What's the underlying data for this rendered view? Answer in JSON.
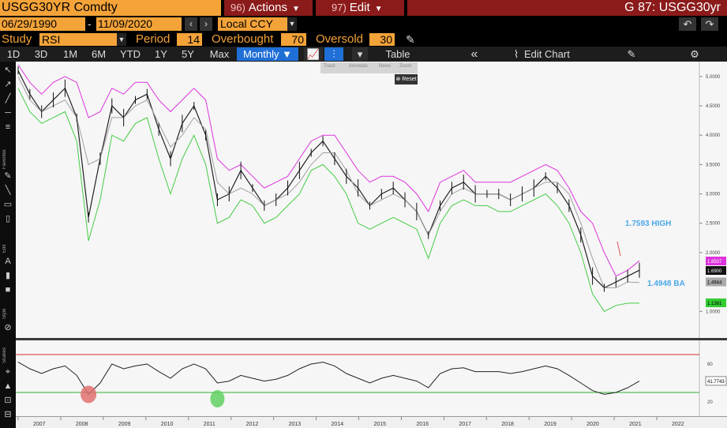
{
  "header": {
    "ticker": "USGG30YR Comdty",
    "actions": {
      "num": "96)",
      "label": "Actions"
    },
    "edit": {
      "num": "97)",
      "label": "Edit"
    },
    "title": "G 87: USGG30yr"
  },
  "dates": {
    "start": "06/29/1990",
    "separator": "-",
    "end": "11/09/2020"
  },
  "currency": "Local CCY",
  "study": {
    "label": "Study",
    "value": "RSI",
    "period_label": "Period",
    "period": "14",
    "overbought_label": "Overbought",
    "overbought": "70",
    "oversold_label": "Oversold",
    "oversold": "30"
  },
  "ranges": [
    "1D",
    "3D",
    "1M",
    "6M",
    "YTD",
    "1Y",
    "5Y",
    "Max"
  ],
  "frequency": "Monthly",
  "toolbar": {
    "table": "Table",
    "edit_chart": "Edit Chart"
  },
  "mini_toolbar": {
    "track": "Track",
    "annotate": "Annotate",
    "news": "News",
    "zoom": "Zoom",
    "reset": "Reset"
  },
  "sidebar_labels": {
    "favorites": "Favorites",
    "edit": "Edit",
    "style": "Style",
    "studies": "Studies"
  },
  "chart_data": {
    "type": "line",
    "main": {
      "y_ticks": [
        "5.0000",
        "4.5000",
        "4.0000",
        "3.5000",
        "3.0000",
        "2.5000",
        "2.0000",
        "1.0000"
      ],
      "ylim": [
        0.6,
        5.2
      ],
      "x_labels": [
        "2007",
        "2008",
        "2009",
        "2010",
        "2011",
        "2012",
        "2013",
        "2014",
        "2015",
        "2016",
        "2017",
        "2018",
        "2019",
        "2020",
        "2021",
        "2022"
      ],
      "series": [
        {
          "values": [
            5.1,
            4.7,
            4.4,
            4.6,
            4.8,
            4.3,
            2.6,
            3.6,
            4.5,
            4.3,
            4.6,
            4.7,
            4.1,
            3.6,
            4.2,
            4.5,
            4.0,
            2.9,
            3.0,
            3.4,
            3.1,
            2.8,
            2.9,
            3.1,
            3.4,
            3.7,
            3.9,
            3.6,
            3.3,
            3.1,
            2.8,
            3.0,
            3.1,
            2.9,
            2.7,
            2.3,
            2.8,
            3.1,
            3.2,
            3.0,
            3.0,
            3.0,
            2.9,
            3.0,
            3.1,
            3.3,
            3.1,
            2.8,
            2.3,
            1.6,
            1.4,
            1.5,
            1.6,
            1.7
          ]
        },
        {
          "values": [
            5.2,
            4.9,
            4.7,
            4.9,
            5.0,
            4.9,
            4.3,
            4.4,
            4.8,
            4.7,
            4.9,
            4.9,
            4.6,
            4.4,
            4.6,
            4.8,
            4.6,
            3.6,
            3.4,
            3.5,
            3.3,
            3.1,
            3.2,
            3.3,
            3.6,
            3.9,
            4.0,
            4.0,
            3.7,
            3.4,
            3.2,
            3.3,
            3.3,
            3.2,
            3.0,
            2.7,
            3.2,
            3.3,
            3.4,
            3.2,
            3.2,
            3.2,
            3.2,
            3.3,
            3.4,
            3.5,
            3.4,
            3.1,
            2.7,
            2.5,
            2.0,
            1.6,
            1.7,
            1.86
          ]
        },
        {
          "values": [
            4.8,
            4.4,
            4.2,
            4.3,
            4.4,
            3.9,
            2.2,
            2.9,
            4.0,
            3.9,
            4.2,
            4.3,
            3.6,
            3.0,
            3.6,
            4.0,
            3.5,
            2.5,
            2.6,
            2.9,
            2.8,
            2.5,
            2.6,
            2.8,
            3.0,
            3.4,
            3.5,
            3.3,
            3.0,
            2.5,
            2.4,
            2.5,
            2.6,
            2.5,
            2.4,
            1.9,
            2.5,
            2.8,
            2.9,
            2.8,
            2.8,
            2.7,
            2.7,
            2.8,
            2.9,
            3.0,
            2.8,
            2.5,
            2.0,
            1.3,
            1.0,
            1.1,
            1.14,
            1.14
          ]
        },
        {
          "values": [
            5.0,
            4.6,
            4.4,
            4.5,
            4.6,
            4.3,
            3.5,
            3.6,
            4.3,
            4.3,
            4.5,
            4.6,
            4.2,
            3.8,
            4.0,
            4.3,
            4.1,
            3.2,
            3.0,
            3.1,
            3.0,
            2.8,
            2.9,
            3.0,
            3.2,
            3.5,
            3.7,
            3.7,
            3.4,
            3.0,
            2.8,
            2.9,
            3.0,
            2.9,
            2.7,
            2.3,
            2.7,
            3.0,
            3.1,
            3.0,
            3.0,
            3.0,
            2.9,
            3.0,
            3.1,
            3.2,
            3.2,
            3.0,
            2.5,
            1.9,
            1.4,
            1.4,
            1.5,
            1.49
          ]
        }
      ],
      "series_colors": [
        "#222222",
        "#dd33dd",
        "#44cc44",
        "#a0a0a0"
      ],
      "last_values": {
        "upper": "1.8507",
        "last": "1.6900",
        "mid": "1.4944",
        "lower": "1.1381"
      },
      "annotations": {
        "high": "1.7593 HIGH",
        "ba": "1.4948 BA"
      }
    },
    "rsi": {
      "y_ticks": [
        "60",
        "20"
      ],
      "overbought": 70,
      "oversold": 30,
      "last": "41.7743",
      "values": [
        62,
        55,
        50,
        55,
        58,
        48,
        28,
        40,
        60,
        55,
        58,
        60,
        52,
        45,
        55,
        60,
        55,
        40,
        42,
        48,
        45,
        42,
        44,
        48,
        55,
        60,
        62,
        58,
        50,
        45,
        40,
        45,
        48,
        45,
        42,
        35,
        50,
        55,
        56,
        52,
        52,
        52,
        50,
        52,
        55,
        58,
        55,
        48,
        40,
        32,
        28,
        30,
        35,
        42
      ]
    }
  }
}
